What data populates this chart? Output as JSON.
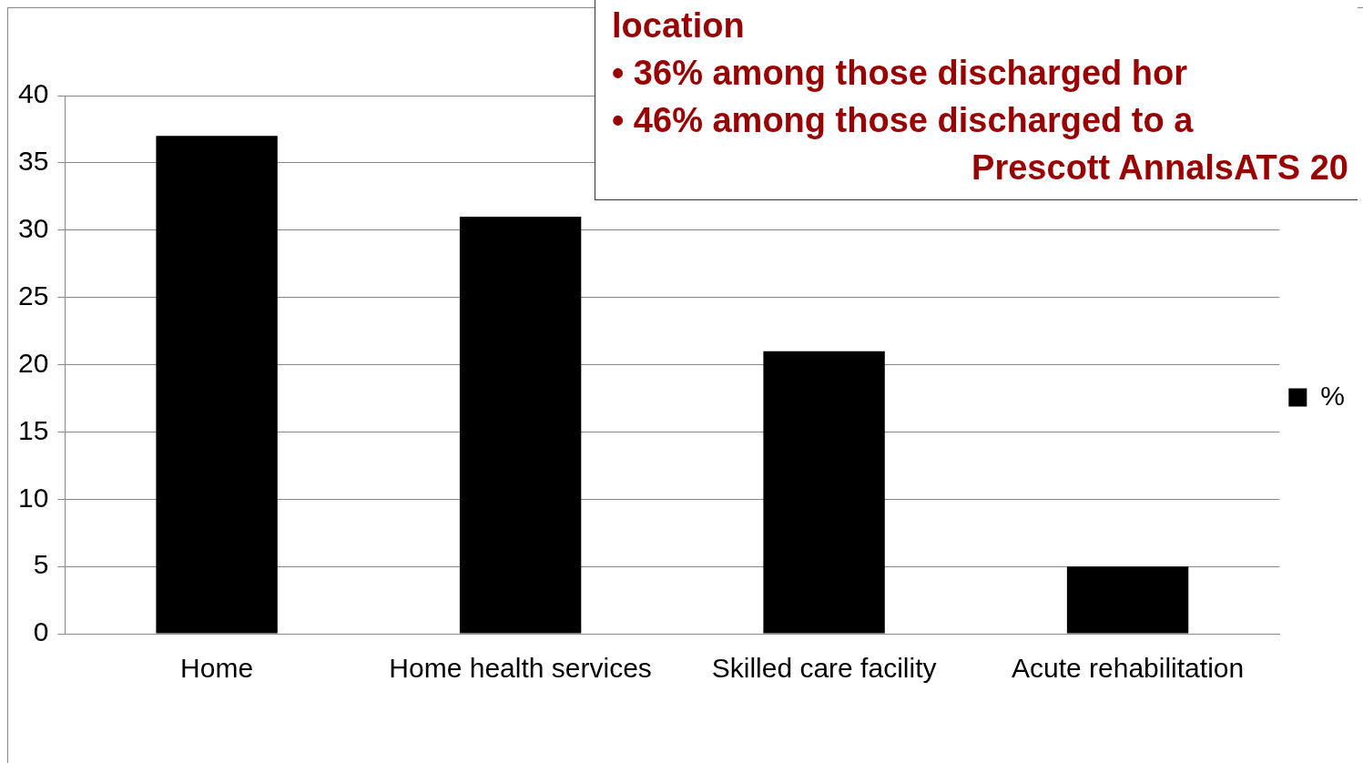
{
  "chart_data": {
    "type": "bar",
    "categories": [
      "Home",
      "Home health services",
      "Skilled care facility",
      "Acute rehabilitation"
    ],
    "series": [
      {
        "name": "%",
        "color": "#000000",
        "values": [
          37,
          31,
          21,
          5
        ]
      }
    ],
    "ylim": [
      0,
      40
    ],
    "yticks": [
      0,
      5,
      10,
      15,
      20,
      25,
      30,
      35,
      40
    ],
    "grid": "y",
    "legend": "right",
    "annotations": [
      "location",
      "• 36% among those discharged hor",
      "• 46% among those discharged to a",
      "Prescott AnnalsATS 20"
    ]
  }
}
